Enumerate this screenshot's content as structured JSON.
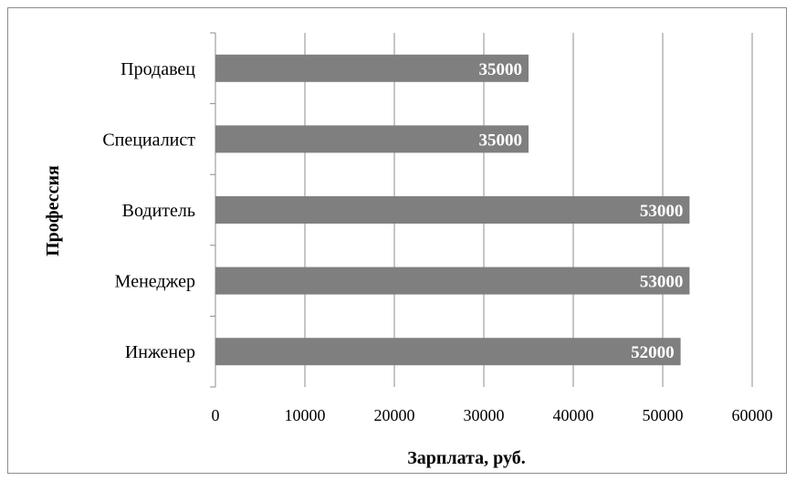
{
  "chart_data": {
    "type": "bar",
    "orientation": "horizontal",
    "categories": [
      "Продавец",
      "Специалист",
      "Водитель",
      "Менеджер",
      "Инженер"
    ],
    "values": [
      35000,
      35000,
      53000,
      53000,
      52000
    ],
    "data_labels": [
      "35000",
      "35000",
      "53000",
      "53000",
      "52000"
    ],
    "xlabel": "Зарплата, руб.",
    "ylabel": "Профессия",
    "xlim": [
      0,
      60000
    ],
    "x_ticks": [
      0,
      10000,
      20000,
      30000,
      40000,
      50000,
      60000
    ],
    "x_tick_labels": [
      "0",
      "10000",
      "20000",
      "30000",
      "40000",
      "50000",
      "60000"
    ],
    "grid": "vertical major gridlines",
    "legend": "none",
    "colors": {
      "bar": "#7f7f7f",
      "gridline": "#8c8c8c",
      "axis": "#8c8c8c",
      "value_label": "#ffffff"
    }
  }
}
